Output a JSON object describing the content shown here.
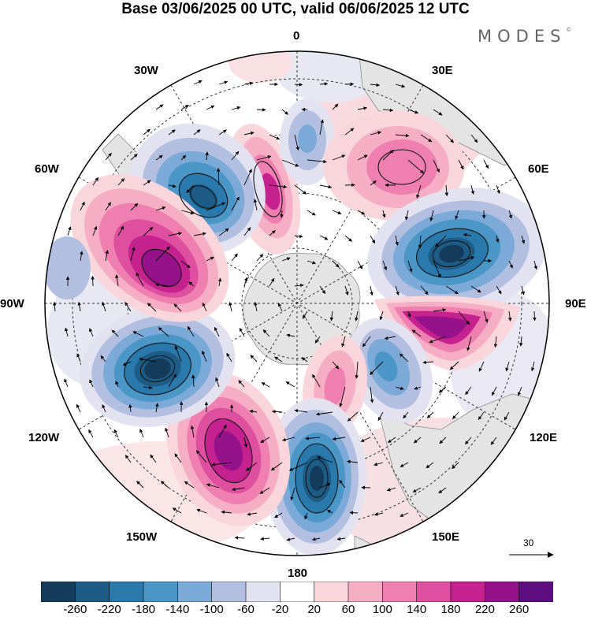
{
  "title": "Base 03/06/2025 00 UTC, valid 06/06/2025 12 UTC",
  "brand": {
    "name": "MODES",
    "mark": "©"
  },
  "map": {
    "projection": "south-polar-stereographic",
    "field_colors": {
      "ocean": "#ffffff",
      "land": "#e6e6e6",
      "coast": "#8a8a8a"
    },
    "longitude_labels": [
      {
        "id": "0",
        "text": "0"
      },
      {
        "id": "30e",
        "text": "30E"
      },
      {
        "id": "60e",
        "text": "60E"
      },
      {
        "id": "90e",
        "text": "90E"
      },
      {
        "id": "120e",
        "text": "120E"
      },
      {
        "id": "150e",
        "text": "150E"
      },
      {
        "id": "180",
        "text": "180"
      },
      {
        "id": "150w",
        "text": "150W"
      },
      {
        "id": "120w",
        "text": "120W"
      },
      {
        "id": "90w",
        "text": "90W"
      },
      {
        "id": "60w",
        "text": "60W"
      },
      {
        "id": "30w",
        "text": "30W"
      }
    ],
    "anomaly_centers": [
      {
        "sign": "positive",
        "level": 180,
        "lon": "0 to 20W"
      },
      {
        "sign": "negative",
        "level": -180,
        "lon": "30W"
      },
      {
        "sign": "positive",
        "level": 120,
        "lon": "30E"
      },
      {
        "sign": "negative",
        "level": -260,
        "lon": "75E"
      },
      {
        "sign": "positive",
        "level": 260,
        "lon": "100E"
      },
      {
        "sign": "negative",
        "level": -140,
        "lon": "135E"
      },
      {
        "sign": "positive",
        "level": 100,
        "lon": "160E"
      },
      {
        "sign": "negative",
        "level": -260,
        "lon": "170W"
      },
      {
        "sign": "positive",
        "level": 260,
        "lon": "140W"
      },
      {
        "sign": "negative",
        "level": -260,
        "lon": "110W"
      },
      {
        "sign": "positive",
        "level": 260,
        "lon": "75W"
      },
      {
        "sign": "negative",
        "level": -60,
        "lon": "80W"
      }
    ]
  },
  "vector_scale": {
    "label": "30"
  },
  "colorbar": {
    "colors": [
      "#143c5a",
      "#1d5c86",
      "#2a79ad",
      "#4a96c7",
      "#7ba9d8",
      "#b3bfe0",
      "#e2e2f0",
      "#ffffff",
      "#f9d6dc",
      "#f5aec4",
      "#ee7fb0",
      "#df4fa0",
      "#c5218f",
      "#96128a",
      "#5e0e80"
    ],
    "ticks": [
      "-260",
      "-220",
      "-180",
      "-140",
      "-100",
      "-60",
      "-20",
      "20",
      "60",
      "100",
      "140",
      "180",
      "220",
      "260"
    ]
  }
}
